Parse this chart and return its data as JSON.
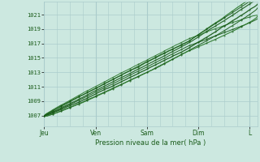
{
  "title": "Pression niveau de la mer( hPa )",
  "ylabel_ticks": [
    1007,
    1009,
    1011,
    1013,
    1015,
    1017,
    1019,
    1021
  ],
  "ylim": [
    1005.5,
    1022.8
  ],
  "xlim": [
    0,
    4.15
  ],
  "day_labels": [
    "Jeu",
    "Ven",
    "Sam",
    "Dim",
    "L"
  ],
  "day_positions": [
    0.0,
    1.0,
    2.0,
    3.0,
    4.0
  ],
  "bg_color": "#cce8e0",
  "grid_color_major": "#aacccc",
  "grid_color_minor": "#c0ddd8",
  "line_color_dark": "#1a5c1a",
  "line_color_mid": "#2d7a2d",
  "n_days": 4.15
}
